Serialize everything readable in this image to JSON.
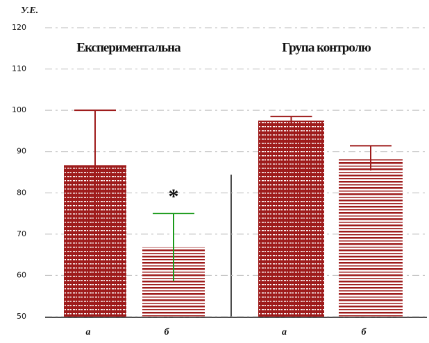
{
  "chart_data": {
    "type": "bar",
    "ylabel": "У.Е.",
    "categories": [
      "а",
      "б",
      "а",
      "б"
    ],
    "values": [
      86.7,
      66.8,
      97.5,
      88.4
    ],
    "errors": [
      13.3,
      8.2,
      1,
      3
    ],
    "patterns": [
      "dense",
      "striped",
      "dense",
      "striped"
    ],
    "group_labels": [
      "Експериментальна",
      "Група контролю"
    ],
    "annotation": "*",
    "color": "#9e1b1b",
    "ylim": [
      50,
      120
    ],
    "yticks": [
      50,
      60,
      70,
      80,
      90,
      100,
      110,
      120
    ],
    "grid": true
  }
}
